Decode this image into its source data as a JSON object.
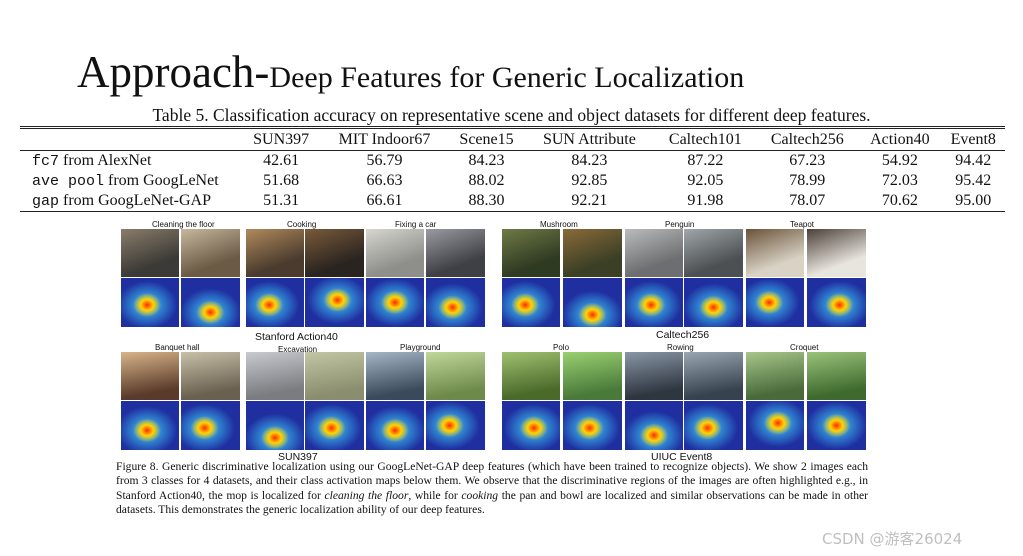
{
  "slide": {
    "title_main": "Approach-",
    "title_rest": "Deep Features for Generic Localization"
  },
  "table": {
    "caption": "Table 5. Classification accuracy on representative scene and object datasets for different deep features.",
    "headers": [
      "",
      "SUN397",
      "MIT Indoor67",
      "Scene15",
      "SUN Attribute",
      "Caltech101",
      "Caltech256",
      "Action40",
      "Event8"
    ],
    "rows": [
      {
        "code": "fc7",
        "rest": " from AlexNet",
        "values": [
          "42.61",
          "56.79",
          "84.23",
          "84.23",
          "87.22",
          "67.23",
          "54.92",
          "94.42"
        ]
      },
      {
        "code": "ave pool",
        "rest": " from GoogLeNet",
        "values": [
          "51.68",
          "66.63",
          "88.02",
          "92.85",
          "92.05",
          "78.99",
          "72.03",
          "95.42"
        ]
      },
      {
        "code": "gap",
        "rest": " from GoogLeNet-GAP",
        "values": [
          "51.31",
          "66.61",
          "88.30",
          "92.21",
          "91.98",
          "78.07",
          "70.62",
          "95.00"
        ]
      }
    ]
  },
  "figure": {
    "top_panels": [
      "Cleaning the floor",
      "Cooking",
      "Fixing a car",
      "Mushroom",
      "Penguin",
      "Teapot"
    ],
    "bottom_panels": [
      "Banquet hall",
      "Excavation",
      "Playground",
      "Polo",
      "Rowing",
      "Croquet"
    ],
    "groups": [
      "Stanford Action40",
      "Caltech256",
      "SUN397",
      "UIUC Event8"
    ],
    "caption": {
      "p1": "Figure 8. Generic discriminative localization using our GoogLeNet-GAP deep features (which have been trained to recognize objects). We show 2 images each from 3 classes for 4 datasets, and their class activation maps below them. We observe that the discriminative regions of the images are often highlighted e.g., in Stanford Action40, the mop is localized for ",
      "em1": "cleaning the floor",
      "p2": ", while for ",
      "em2": "cooking",
      "p3": " the pan and bowl are localized and similar observations can be made in other datasets. This demonstrates the generic localization ability of our deep features."
    }
  },
  "watermark": "CSDN @游客26024",
  "colors": {
    "cam_low": "#1f2fa0",
    "cam_mid": "#3fd2ff",
    "cam_peak": "#ff2a00",
    "cam_warm": "#ffd200"
  }
}
